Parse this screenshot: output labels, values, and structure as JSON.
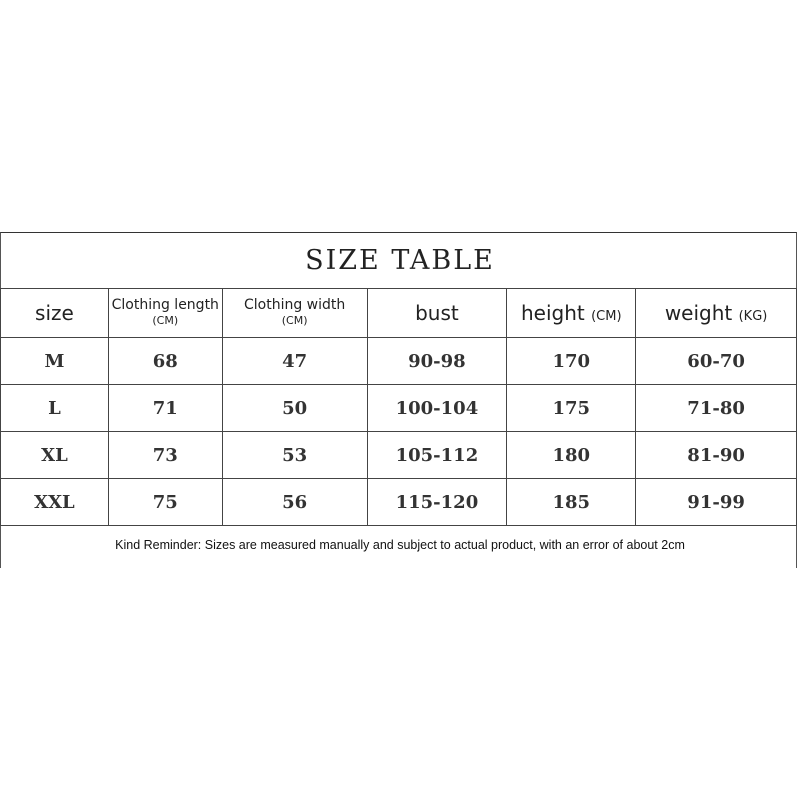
{
  "title": "SIZE TABLE",
  "headers": [
    {
      "label": "size",
      "unit": ""
    },
    {
      "label": "Clothing length",
      "unit": "(CM)"
    },
    {
      "label": "Clothing width",
      "unit": "(CM)"
    },
    {
      "label": "bust",
      "unit": ""
    },
    {
      "label": "height",
      "unit": "(CM)"
    },
    {
      "label": "weight",
      "unit": "(KG)"
    }
  ],
  "rows": [
    [
      "M",
      "68",
      "47",
      "90-98",
      "170",
      "60-70"
    ],
    [
      "L",
      "71",
      "50",
      "100-104",
      "175",
      "71-80"
    ],
    [
      "XL",
      "73",
      "53",
      "105-112",
      "180",
      "81-90"
    ],
    [
      "XXL",
      "75",
      "56",
      "115-120",
      "185",
      "91-99"
    ]
  ],
  "note": "Kind Reminder: Sizes are measured manually and subject to actual product, with an error of about 2cm"
}
